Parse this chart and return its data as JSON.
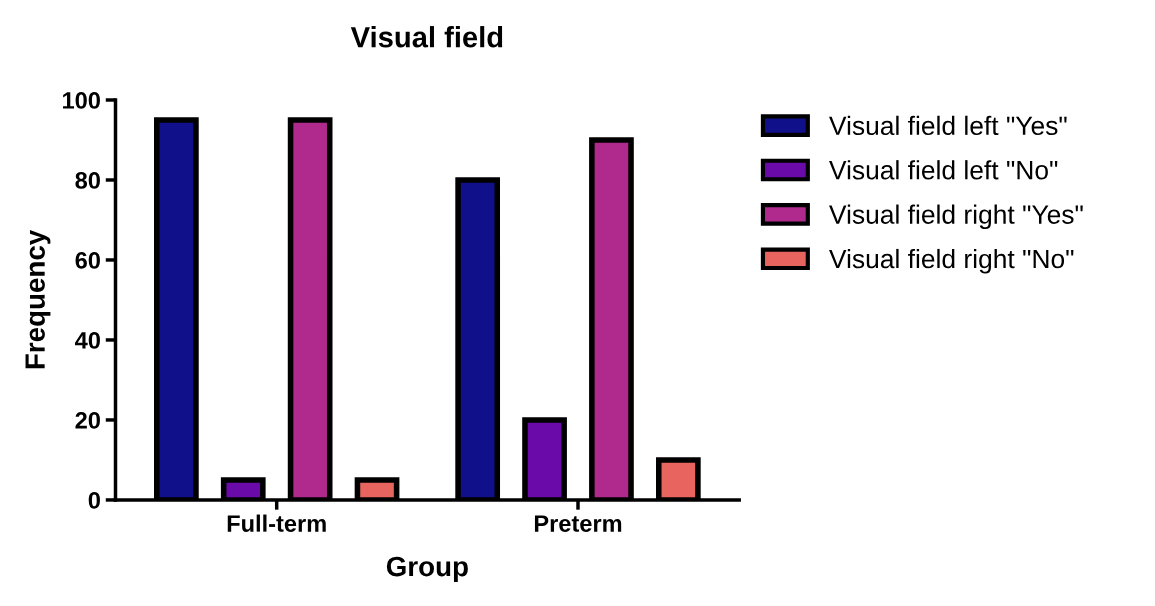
{
  "chart_data": {
    "type": "bar",
    "title": "Visual field",
    "xlabel": "Group",
    "ylabel": "Frequency",
    "categories": [
      "Full-term",
      "Preterm"
    ],
    "series": [
      {
        "name": "Visual field left \"Yes\"",
        "color": "#10108a",
        "values": [
          95,
          80
        ]
      },
      {
        "name": "Visual field left \"No\"",
        "color": "#6a0aa8",
        "values": [
          5,
          20
        ]
      },
      {
        "name": "Visual field right \"Yes\"",
        "color": "#b02a8e",
        "values": [
          95,
          90
        ]
      },
      {
        "name": "Visual field right \"No\"",
        "color": "#e8655f",
        "values": [
          5,
          10
        ]
      }
    ],
    "ylim": [
      0,
      100
    ],
    "yticks": [
      0,
      20,
      40,
      60,
      80,
      100
    ],
    "grid": false,
    "legend": "right"
  }
}
